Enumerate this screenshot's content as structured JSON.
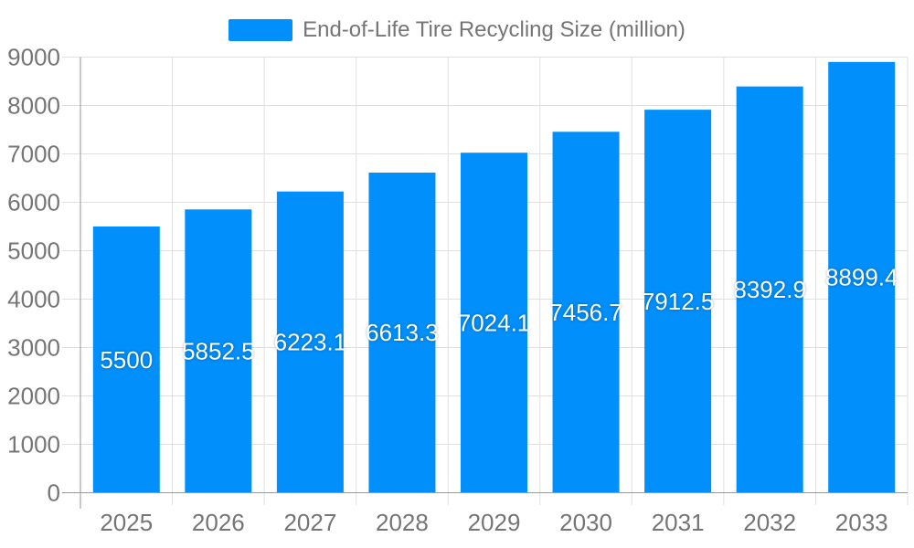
{
  "legend": {
    "label": "End-of-Life Tire Recycling Size (million)",
    "swatch_color": "#008FFB"
  },
  "chart_data": {
    "type": "bar",
    "title": "End-of-Life Tire Recycling Size (million)",
    "categories": [
      "2025",
      "2026",
      "2027",
      "2028",
      "2029",
      "2030",
      "2031",
      "2032",
      "2033"
    ],
    "series": [
      {
        "name": "End-of-Life Tire Recycling Size (million)",
        "color": "#008FFB",
        "values": [
          5500,
          5852.5,
          6223.1,
          6613.3,
          7024.1,
          7456.7,
          7912.5,
          8392.9,
          8899.4
        ],
        "value_labels": [
          "5500",
          "5852.5",
          "6223.1",
          "6613.3",
          "7024.1",
          "7456.7",
          "7912.5",
          "8392.9",
          "8899.4"
        ]
      }
    ],
    "xlabel": "",
    "ylabel": "",
    "ylim": [
      0,
      9000
    ],
    "yticks": [
      "0",
      "1000",
      "2000",
      "3000",
      "4000",
      "5000",
      "6000",
      "7000",
      "8000",
      "9000"
    ],
    "grid": true,
    "legend_position": "top",
    "value_label_position": "inside-center",
    "value_label_color": "#ffffff"
  },
  "style": {
    "bar_color": "#008FFB",
    "grid_color": "#e0e0e0",
    "axis_line_color": "#999999",
    "tick_text_color": "#757575",
    "background": "#ffffff"
  }
}
